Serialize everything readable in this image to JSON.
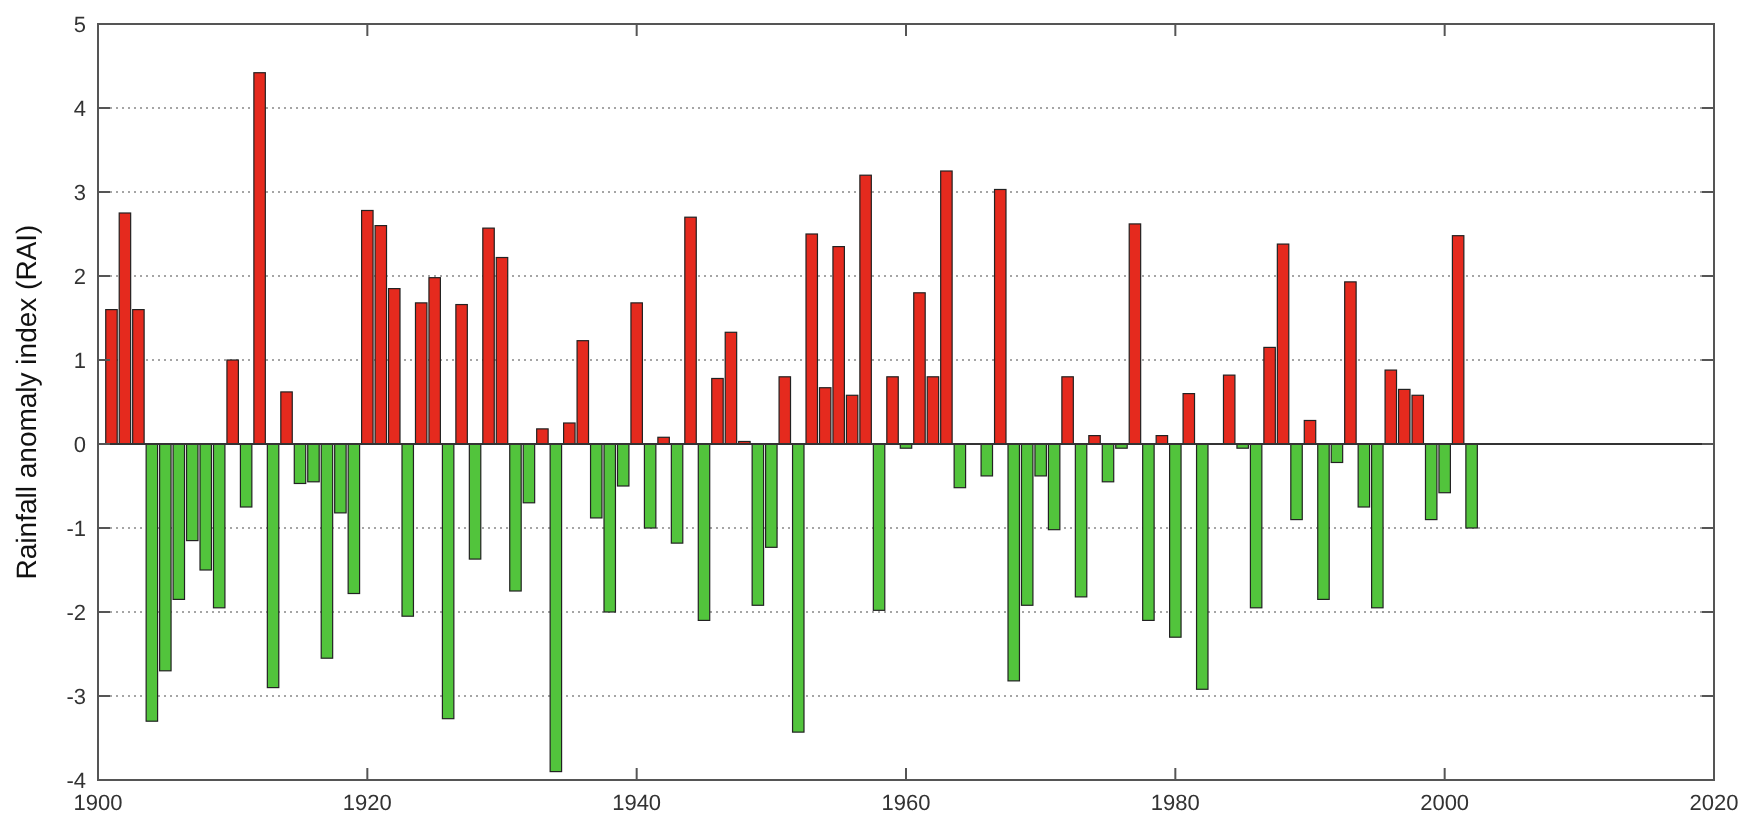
{
  "chart_data": {
    "type": "bar",
    "ylabel": "Rainfall anomaly index (RAI)",
    "x": [
      1901,
      1902,
      1903,
      1904,
      1905,
      1906,
      1907,
      1908,
      1909,
      1910,
      1911,
      1912,
      1913,
      1914,
      1915,
      1916,
      1917,
      1918,
      1919,
      1920,
      1921,
      1922,
      1923,
      1924,
      1925,
      1926,
      1927,
      1928,
      1929,
      1930,
      1931,
      1932,
      1933,
      1934,
      1935,
      1936,
      1937,
      1938,
      1939,
      1940,
      1941,
      1942,
      1943,
      1944,
      1945,
      1946,
      1947,
      1948,
      1949,
      1950,
      1951,
      1952,
      1953,
      1954,
      1955,
      1956,
      1957,
      1958,
      1959,
      1960,
      1961,
      1962,
      1963,
      1964,
      1966,
      1967,
      1968,
      1969,
      1970,
      1971,
      1972,
      1973,
      1974,
      1975,
      1976,
      1977,
      1978,
      1979,
      1980,
      1981,
      1982,
      1984,
      1985,
      1986,
      1987,
      1988,
      1989,
      1990,
      1991,
      1992,
      1993,
      1994,
      1995,
      1996,
      1997,
      1998,
      1999,
      2000,
      2001,
      2002
    ],
    "values": [
      1.6,
      2.75,
      1.6,
      -3.3,
      -2.7,
      -1.85,
      -1.15,
      -1.5,
      -1.95,
      1.0,
      -0.75,
      4.42,
      -2.9,
      0.62,
      -0.47,
      -0.45,
      -2.55,
      -0.82,
      -1.78,
      2.78,
      2.6,
      1.85,
      -2.05,
      1.68,
      1.98,
      -3.27,
      1.66,
      -1.37,
      2.57,
      2.22,
      -1.75,
      -0.7,
      0.18,
      -3.9,
      0.25,
      1.23,
      -0.88,
      -2.0,
      -0.5,
      1.68,
      -1.0,
      0.08,
      -1.18,
      2.7,
      -2.1,
      0.78,
      1.33,
      0.03,
      -1.92,
      -1.23,
      0.8,
      -3.43,
      2.5,
      0.67,
      2.35,
      0.58,
      3.2,
      -1.98,
      0.8,
      -0.05,
      1.8,
      0.8,
      3.25,
      -0.52,
      -0.38,
      3.03,
      -2.82,
      -1.92,
      -0.38,
      -1.02,
      0.8,
      -1.82,
      0.1,
      -0.45,
      -0.05,
      2.62,
      -2.1,
      0.1,
      -2.3,
      0.6,
      -2.92,
      0.82,
      -0.05,
      -1.95,
      1.15,
      2.38,
      -0.9,
      0.28,
      -1.85,
      -0.22,
      1.93,
      -0.75,
      -1.95,
      0.88,
      0.65,
      0.58,
      -0.9,
      -0.58,
      2.48,
      -1.0
    ],
    "colors": [
      "#e52a1e",
      "#e52a1e",
      "#e52a1e",
      "#52c43c",
      "#52c43c",
      "#52c43c",
      "#52c43c",
      "#52c43c",
      "#52c43c",
      "#e52a1e",
      "#52c43c",
      "#e52a1e",
      "#52c43c",
      "#e52a1e",
      "#52c43c",
      "#52c43c",
      "#52c43c",
      "#52c43c",
      "#52c43c",
      "#e52a1e",
      "#e52a1e",
      "#e52a1e",
      "#52c43c",
      "#e52a1e",
      "#e52a1e",
      "#52c43c",
      "#e52a1e",
      "#52c43c",
      "#e52a1e",
      "#e52a1e",
      "#52c43c",
      "#52c43c",
      "#e52a1e",
      "#52c43c",
      "#e52a1e",
      "#e52a1e",
      "#52c43c",
      "#52c43c",
      "#52c43c",
      "#e52a1e",
      "#52c43c",
      "#e52a1e",
      "#52c43c",
      "#e52a1e",
      "#52c43c",
      "#e52a1e",
      "#e52a1e",
      "#e52a1e",
      "#52c43c",
      "#52c43c",
      "#e52a1e",
      "#52c43c",
      "#e52a1e",
      "#e52a1e",
      "#e52a1e",
      "#e52a1e",
      "#e52a1e",
      "#52c43c",
      "#e52a1e",
      "#52c43c",
      "#e52a1e",
      "#e52a1e",
      "#e52a1e",
      "#52c43c",
      "#52c43c",
      "#e52a1e",
      "#52c43c",
      "#52c43c",
      "#52c43c",
      "#52c43c",
      "#e52a1e",
      "#52c43c",
      "#e52a1e",
      "#52c43c",
      "#52c43c",
      "#e52a1e",
      "#52c43c",
      "#e52a1e",
      "#52c43c",
      "#e52a1e",
      "#52c43c",
      "#e52a1e",
      "#52c43c",
      "#52c43c",
      "#e52a1e",
      "#e52a1e",
      "#52c43c",
      "#e52a1e",
      "#52c43c",
      "#52c43c",
      "#e52a1e",
      "#52c43c",
      "#52c43c",
      "#e52a1e",
      "#e52a1e",
      "#e52a1e",
      "#52c43c",
      "#52c43c",
      "#e52a1e",
      "#52c43c"
    ],
    "xlim": [
      1900,
      2020
    ],
    "xticks": [
      1900,
      1920,
      1940,
      1960,
      1980,
      2000,
      2020
    ],
    "ylim": [
      -4,
      5
    ],
    "yticks": [
      -4,
      -3,
      -2,
      -1,
      0,
      1,
      2,
      3,
      4,
      5
    ],
    "grid": "y"
  }
}
